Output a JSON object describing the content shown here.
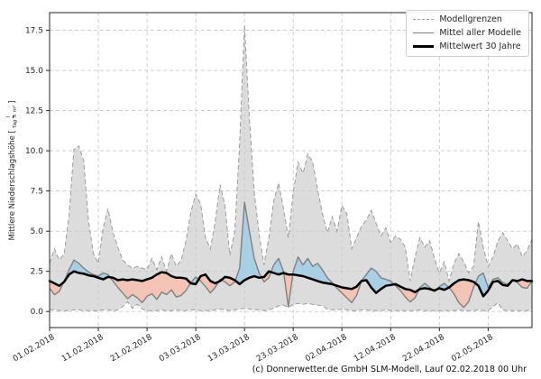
{
  "figure": {
    "footer": "(c) Donnerwetter.de GmbH SLM-Modell, Lauf 02.02.2018 00 Uhr",
    "ylabel": {
      "prefix": "Mittlere Niederschlagshöhe [",
      "frac_num": "l",
      "frac_den": "Tag × m²",
      "suffix": "]"
    }
  },
  "legend": {
    "items": [
      {
        "label": "Modellgrenzen",
        "style": "dashed-gray"
      },
      {
        "label": "Mittel aller Modelle",
        "style": "solid-gray"
      },
      {
        "label": "Mittelwert 30 Jahre",
        "style": "solid-black"
      }
    ]
  },
  "chart_data": {
    "type": "line",
    "title": "",
    "xlabel": "",
    "ylabel": "Mittlere Niederschlagshöhe [l/(Tag × m²)]",
    "grid": true,
    "legend_position": "upper right",
    "ylim": [
      -1.0,
      18.6
    ],
    "y_ticks": [
      0.0,
      2.5,
      5.0,
      7.5,
      10.0,
      12.5,
      15.0,
      17.5
    ],
    "x_tick_labels": [
      "01.02.2018",
      "11.02.2018",
      "21.02.2018",
      "03.03.2018",
      "13.03.2018",
      "23.03.2018",
      "02.04.2018",
      "12.04.2018",
      "22.04.2018",
      "02.05.2018"
    ],
    "x_tick_days": [
      0,
      10,
      20,
      30,
      40,
      50,
      60,
      70,
      80,
      90
    ],
    "x_start_date": "01.02.2018",
    "x_days_total": 99,
    "colors": {
      "band": "#dcdcdc",
      "band_edge": "#9b9b9b",
      "fill_above": "#a9cfe5",
      "fill_below": "#f3c3b5",
      "model_mean": "#808080",
      "mean30": "#000000",
      "grid": "#c9c9c9",
      "spine": "#262626"
    },
    "series": [
      {
        "name": "Modellgrenze oben",
        "role": "upper_bound",
        "values": [
          3.0,
          3.9,
          3.2,
          3.6,
          6.0,
          10.1,
          10.3,
          9.4,
          5.6,
          3.6,
          3.0,
          5.2,
          6.4,
          4.9,
          4.0,
          3.2,
          2.9,
          2.7,
          2.8,
          2.7,
          2.6,
          3.3,
          2.6,
          3.4,
          2.5,
          3.6,
          2.8,
          3.2,
          4.4,
          6.2,
          7.3,
          6.7,
          4.6,
          3.9,
          5.6,
          7.9,
          6.6,
          3.5,
          5.0,
          10.5,
          17.8,
          12.0,
          7.4,
          4.8,
          2.9,
          4.6,
          6.9,
          8.0,
          6.4,
          4.6,
          7.4,
          9.3,
          8.6,
          9.8,
          9.3,
          7.6,
          6.1,
          4.9,
          5.9,
          5.0,
          6.6,
          6.1,
          3.9,
          4.6,
          5.3,
          5.7,
          6.3,
          5.5,
          4.7,
          5.2,
          4.3,
          4.7,
          4.5,
          4.0,
          1.9,
          3.4,
          4.6,
          4.0,
          4.4,
          3.3,
          2.4,
          3.1,
          1.9,
          3.0,
          3.6,
          3.1,
          2.4,
          2.8,
          5.6,
          4.0,
          2.8,
          3.4,
          4.4,
          4.9,
          4.4,
          3.9,
          4.2,
          3.4,
          3.8,
          4.5
        ]
      },
      {
        "name": "Modellgrenze unten",
        "role": "lower_bound",
        "values": [
          0.1,
          0.1,
          0.05,
          0.05,
          0.05,
          0.1,
          0.1,
          0.05,
          0.05,
          0.05,
          0.05,
          0.1,
          0.1,
          0.05,
          0.1,
          0.3,
          0.6,
          0.2,
          0.45,
          0.15,
          0.05,
          0.05,
          0.05,
          0.1,
          0.05,
          0.05,
          0.1,
          0.05,
          0.05,
          0.1,
          0.1,
          0.05,
          0.05,
          0.05,
          0.1,
          0.15,
          0.1,
          0.05,
          0.1,
          0.15,
          0.2,
          0.15,
          0.1,
          0.1,
          0.05,
          0.1,
          0.2,
          0.35,
          0.4,
          0.25,
          0.45,
          0.5,
          0.45,
          0.5,
          0.45,
          0.4,
          0.35,
          0.15,
          0.1,
          0.1,
          0.15,
          0.1,
          0.05,
          0.05,
          0.1,
          0.1,
          0.05,
          0.05,
          0.05,
          0.1,
          0.05,
          0.05,
          0.05,
          0.05,
          0.05,
          0.05,
          0.1,
          0.05,
          0.05,
          0.05,
          0.05,
          0.05,
          0.05,
          0.05,
          0.1,
          0.05,
          0.05,
          0.05,
          0.1,
          0.05,
          0.05,
          0.3,
          0.55,
          0.1,
          0.05,
          0.05,
          0.05,
          0.05,
          0.05,
          0.1
        ]
      },
      {
        "name": "Mittel aller Modelle",
        "role": "model_mean",
        "values": [
          1.45,
          1.05,
          1.25,
          1.9,
          2.6,
          3.2,
          3.0,
          2.7,
          2.45,
          2.3,
          2.2,
          2.4,
          2.3,
          1.9,
          1.5,
          1.15,
          0.8,
          1.05,
          0.85,
          0.55,
          0.95,
          1.1,
          0.75,
          1.2,
          1.05,
          1.35,
          0.9,
          1.0,
          1.3,
          1.8,
          2.15,
          1.9,
          1.55,
          1.15,
          1.5,
          2.0,
          1.85,
          1.6,
          1.85,
          2.7,
          6.8,
          5.0,
          3.3,
          2.4,
          1.85,
          2.1,
          2.9,
          3.3,
          2.5,
          0.3,
          2.5,
          3.4,
          2.9,
          3.3,
          2.8,
          3.0,
          2.6,
          2.1,
          1.8,
          1.45,
          1.15,
          0.85,
          0.55,
          1.0,
          1.9,
          2.3,
          2.7,
          2.5,
          2.1,
          2.0,
          1.9,
          1.6,
          1.3,
          0.9,
          0.6,
          0.85,
          1.5,
          1.75,
          1.5,
          1.25,
          1.55,
          1.75,
          1.5,
          1.1,
          0.55,
          0.25,
          0.6,
          1.5,
          2.2,
          2.4,
          1.5,
          2.0,
          2.1,
          1.8,
          1.7,
          1.95,
          1.8,
          1.5,
          1.45,
          1.9
        ]
      },
      {
        "name": "Mittelwert 30 Jahre",
        "role": "mean_30y",
        "values": [
          1.9,
          1.75,
          1.6,
          1.85,
          2.3,
          2.5,
          2.4,
          2.35,
          2.25,
          2.2,
          2.1,
          2.0,
          2.15,
          2.1,
          1.95,
          2.0,
          1.95,
          2.0,
          1.95,
          1.9,
          2.0,
          2.1,
          2.3,
          2.45,
          2.4,
          2.2,
          2.1,
          2.1,
          2.05,
          1.75,
          1.7,
          2.2,
          2.3,
          1.9,
          1.75,
          1.9,
          2.15,
          2.1,
          1.95,
          1.7,
          1.95,
          2.1,
          2.2,
          2.1,
          2.15,
          2.5,
          2.4,
          2.3,
          2.4,
          2.3,
          2.3,
          2.25,
          2.2,
          2.1,
          2.0,
          1.9,
          1.8,
          1.75,
          1.7,
          1.6,
          1.5,
          1.45,
          1.4,
          1.55,
          1.9,
          1.95,
          1.5,
          1.15,
          1.4,
          1.6,
          1.65,
          1.7,
          1.55,
          1.4,
          1.35,
          1.2,
          1.4,
          1.45,
          1.4,
          1.3,
          1.45,
          1.35,
          1.5,
          1.75,
          1.95,
          2.0,
          1.95,
          1.85,
          1.6,
          0.95,
          1.3,
          1.85,
          1.9,
          1.65,
          1.6,
          1.95,
          1.9,
          2.0,
          1.9,
          1.9
        ]
      }
    ]
  }
}
